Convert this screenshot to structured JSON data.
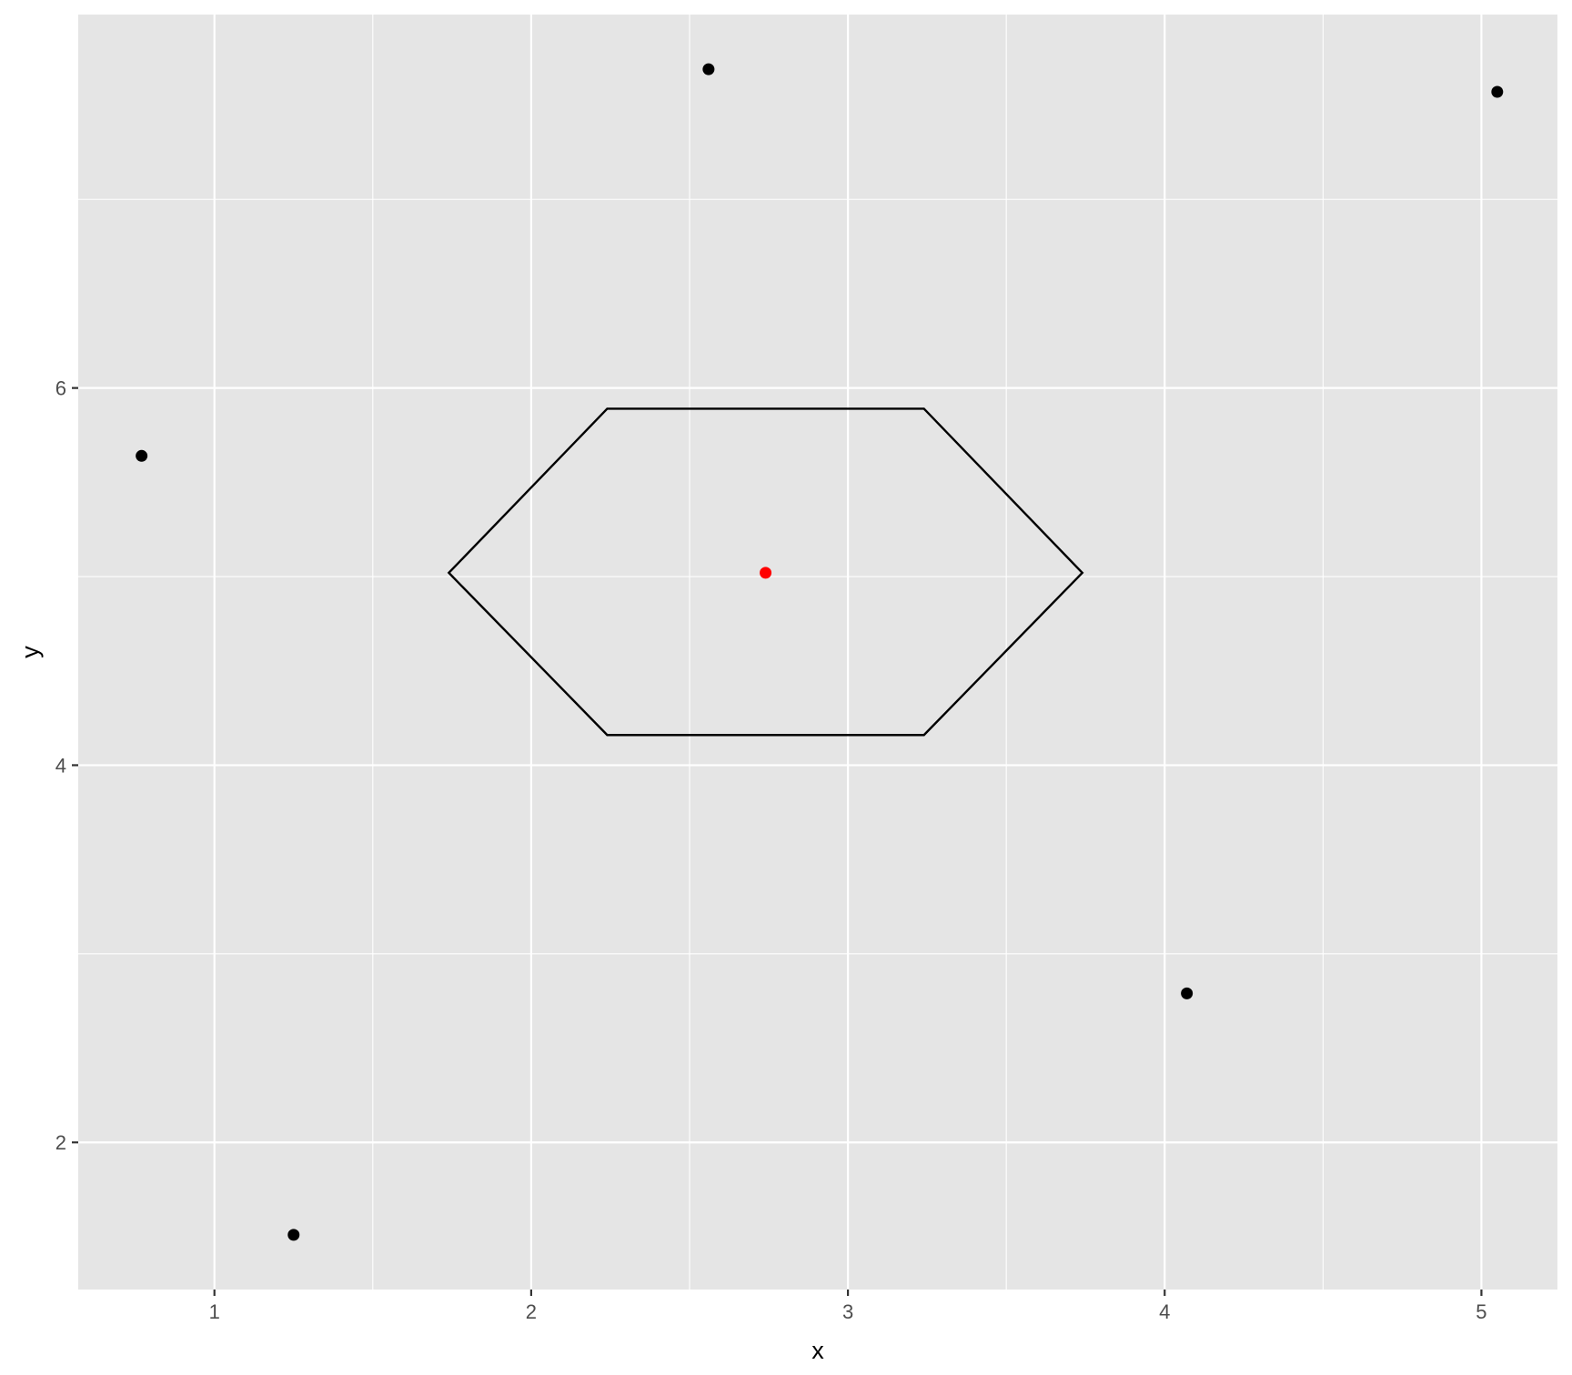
{
  "chart_data": {
    "type": "scatter",
    "xlabel": "x",
    "ylabel": "y",
    "xlim": [
      0.57,
      5.24
    ],
    "ylim": [
      1.22,
      7.98
    ],
    "x_ticks": [
      1,
      2,
      3,
      4,
      5
    ],
    "y_ticks": [
      2,
      4,
      6
    ],
    "grid": true,
    "points": [
      {
        "x": 0.77,
        "y": 5.64
      },
      {
        "x": 1.25,
        "y": 1.51
      },
      {
        "x": 2.56,
        "y": 7.69
      },
      {
        "x": 4.07,
        "y": 2.79
      },
      {
        "x": 5.05,
        "y": 7.57
      }
    ],
    "highlight_point": {
      "x": 2.74,
      "y": 5.02
    },
    "polygon": [
      {
        "x": 1.74,
        "y": 5.02
      },
      {
        "x": 2.24,
        "y": 5.89
      },
      {
        "x": 3.24,
        "y": 5.89
      },
      {
        "x": 3.74,
        "y": 5.02
      },
      {
        "x": 3.24,
        "y": 4.16
      },
      {
        "x": 2.24,
        "y": 4.16
      }
    ],
    "colors": {
      "panel": "#e5e5e5",
      "grid": "#ffffff",
      "point": "#000000",
      "highlight": "#ff0000",
      "polygon": "#000000"
    }
  }
}
